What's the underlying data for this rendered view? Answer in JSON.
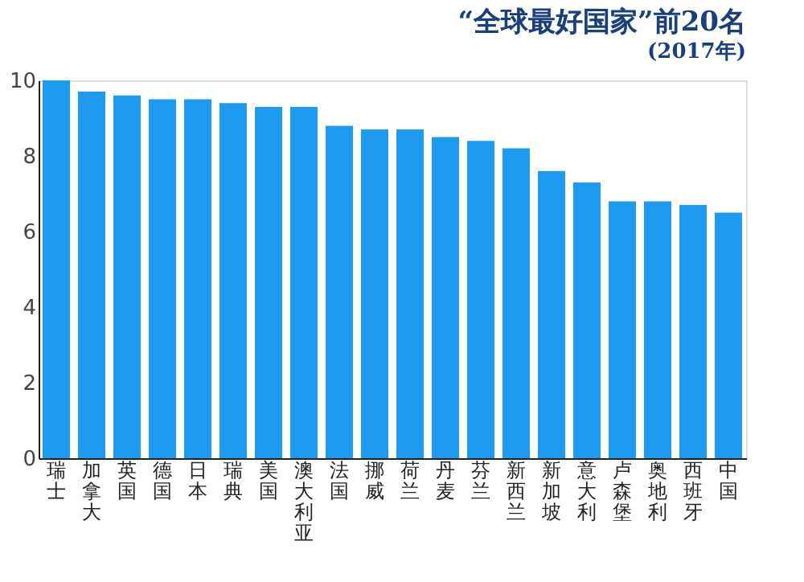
{
  "chart_data": {
    "type": "bar",
    "title": "“全球最好国家”前20名",
    "subtitle": "(2017年)",
    "categories": [
      "瑞士",
      "加拿大",
      "英国",
      "德国",
      "日本",
      "瑞典",
      "美国",
      "澳大利亚",
      "法国",
      "挪威",
      "荷兰",
      "丹麦",
      "芬兰",
      "新西兰",
      "新加坡",
      "意大利",
      "卢森堡",
      "奥地利",
      "西班牙",
      "中国"
    ],
    "values": [
      10.0,
      9.7,
      9.6,
      9.5,
      9.5,
      9.4,
      9.3,
      9.3,
      8.8,
      8.7,
      8.7,
      8.5,
      8.4,
      8.2,
      7.6,
      7.3,
      6.8,
      6.8,
      6.7,
      6.5
    ],
    "color": "#1e9bf0",
    "ylim": [
      0,
      10
    ],
    "yticks": [
      0,
      2,
      4,
      6,
      8,
      10
    ],
    "grid": false
  }
}
